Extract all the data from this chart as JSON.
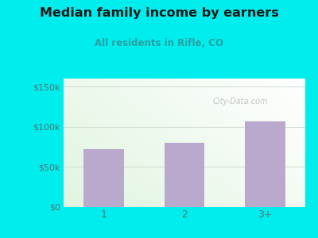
{
  "title": "Median family income by earners",
  "subtitle": "All residents in Rifle, CO",
  "categories": [
    "1",
    "2",
    "3+"
  ],
  "values": [
    72000,
    80000,
    107000
  ],
  "bar_color": "#b9a9cc",
  "background_color": "#00eded",
  "plot_bg_color_topleft": "#d6f0e0",
  "plot_bg_color_bottomright": "#ffffff",
  "title_color": "#1a1a1a",
  "subtitle_color": "#2aa0a0",
  "yticks": [
    0,
    50000,
    100000,
    150000
  ],
  "ytick_labels": [
    "$0",
    "$50k",
    "$100k",
    "$150k"
  ],
  "ylim": [
    0,
    160000
  ],
  "watermark": "City-Data.com",
  "grid_color": "#ccddcc",
  "tick_color": "#557777"
}
